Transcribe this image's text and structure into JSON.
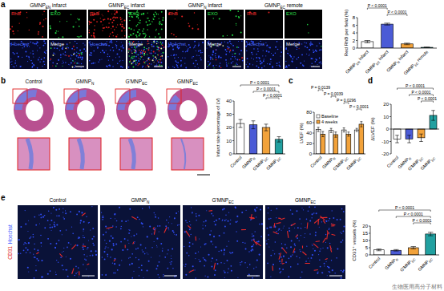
{
  "panel_labels": [
    "a",
    "b",
    "c",
    "d",
    "e"
  ],
  "panel_a_images": {
    "groups": [
      "GMNPEN infarct",
      "GMNPEC infarct",
      "GMNPN infarct",
      "GMNPEC remote"
    ],
    "channels": [
      "RhB",
      "EXO",
      "Hoechst",
      "Merge"
    ]
  },
  "panel_b_images": {
    "groups": [
      "Control",
      "GMNPN",
      "G'MNPEC",
      "GMNPEC"
    ]
  },
  "panel_e_images": {
    "groups": [
      "Control",
      "GMNPN",
      "G'MNPEC",
      "GMNPEC"
    ],
    "stain": [
      "CD31",
      "Hoechst"
    ]
  },
  "watermark": "生物医用高分子材料",
  "chart_data": [
    {
      "type": "bar",
      "ylabel": "Red RhB per field (%)",
      "categories": [
        "GMNPEN infarct",
        "GMNPEC infarct",
        "GMNPN infarct",
        "GMNPEC remote"
      ],
      "values": [
        1.7,
        6.3,
        1.1,
        0.2
      ],
      "errors": [
        0.3,
        0.25,
        0.2,
        0.05
      ],
      "colors": [
        "#ffffff",
        "#4b5bd6",
        "#f2a23a",
        "#21a0a0"
      ],
      "ylim": [
        0,
        8
      ],
      "yticks": [
        0,
        2,
        4,
        6,
        8
      ],
      "annotations": [
        {
          "text": "P < 0.0001",
          "from": 0,
          "to": 1
        },
        {
          "text": "P < 0.0001",
          "from": 1,
          "to": 2
        }
      ]
    },
    {
      "type": "bar",
      "ylabel": "Infarct size (percentage of LV)",
      "categories": [
        "Control",
        "GMNPN",
        "G'MNPEC",
        "GMNPEC"
      ],
      "values": [
        23,
        22,
        20,
        11
      ],
      "errors": [
        3,
        3,
        2.5,
        2
      ],
      "colors": [
        "#ffffff",
        "#4b5bd6",
        "#f2a23a",
        "#21a0a0"
      ],
      "ylim": [
        0,
        40
      ],
      "yticks": [
        0,
        10,
        20,
        30,
        40
      ],
      "annotations": [
        {
          "text": "P < 0.0001",
          "from": 0,
          "to": 3
        },
        {
          "text": "P < 0.0001",
          "from": 1,
          "to": 3
        },
        {
          "text": "P < 0.0001",
          "from": 2,
          "to": 3
        }
      ]
    },
    {
      "type": "bar",
      "ylabel": "LVEF (%)",
      "categories": [
        "Control",
        "GMNPN",
        "G'MNPEC",
        "GMNPEC"
      ],
      "series": [
        {
          "name": "Baseline",
          "color": "#ffffff",
          "values": [
            47,
            45,
            46,
            46
          ],
          "errors": [
            4,
            4,
            4,
            3
          ]
        },
        {
          "name": "4 weeks",
          "color": "#f2a23a",
          "values": [
            38,
            37,
            38,
            57
          ],
          "errors": [
            5,
            5,
            4,
            5
          ]
        }
      ],
      "legend": "upper left",
      "ylim": [
        0,
        80
      ],
      "yticks": [
        0,
        20,
        40,
        60,
        80
      ],
      "annotations": [
        {
          "text": "P = 0.0139",
          "category": 0
        },
        {
          "text": "P = 0.0039",
          "category": 1
        },
        {
          "text": "P = 0.0296",
          "category": 2
        },
        {
          "text": "P < 0.0001",
          "category": 3
        }
      ]
    },
    {
      "type": "bar",
      "ylabel": "ΔLVEF (%)",
      "categories": [
        "Control",
        "GMNPN",
        "G'MNPEC",
        "GMNPEC"
      ],
      "values": [
        -8,
        -8,
        -7,
        11
      ],
      "errors": [
        3,
        3,
        3,
        4
      ],
      "colors": [
        "#ffffff",
        "#4b5bd6",
        "#f2a23a",
        "#21a0a0"
      ],
      "ylim": [
        -20,
        20
      ],
      "yticks": [
        -20,
        -10,
        0,
        10,
        20
      ],
      "annotations": [
        {
          "text": "P < 0.0001",
          "from": 0,
          "to": 3
        },
        {
          "text": "P < 0.0001",
          "from": 1,
          "to": 3
        },
        {
          "text": "P < 0.0001",
          "from": 2,
          "to": 3
        }
      ]
    },
    {
      "type": "bar",
      "ylabel": "CD31⁺ vessels (%)",
      "categories": [
        "Control",
        "GMNPN",
        "G'MNPEC",
        "GMNPEC"
      ],
      "values": [
        3.5,
        3.2,
        5.0,
        14.5
      ],
      "errors": [
        0.6,
        0.5,
        0.8,
        1.2
      ],
      "colors": [
        "#ffffff",
        "#4b5bd6",
        "#f2a23a",
        "#21a0a0"
      ],
      "ylim": [
        0,
        20
      ],
      "yticks": [
        0,
        5,
        10,
        15,
        20
      ],
      "annotations": [
        {
          "text": "P < 0.0001",
          "from": 0,
          "to": 3
        },
        {
          "text": "P < 0.0001",
          "from": 1,
          "to": 3
        },
        {
          "text": "P < 0.0001",
          "from": 2,
          "to": 3
        }
      ]
    }
  ]
}
